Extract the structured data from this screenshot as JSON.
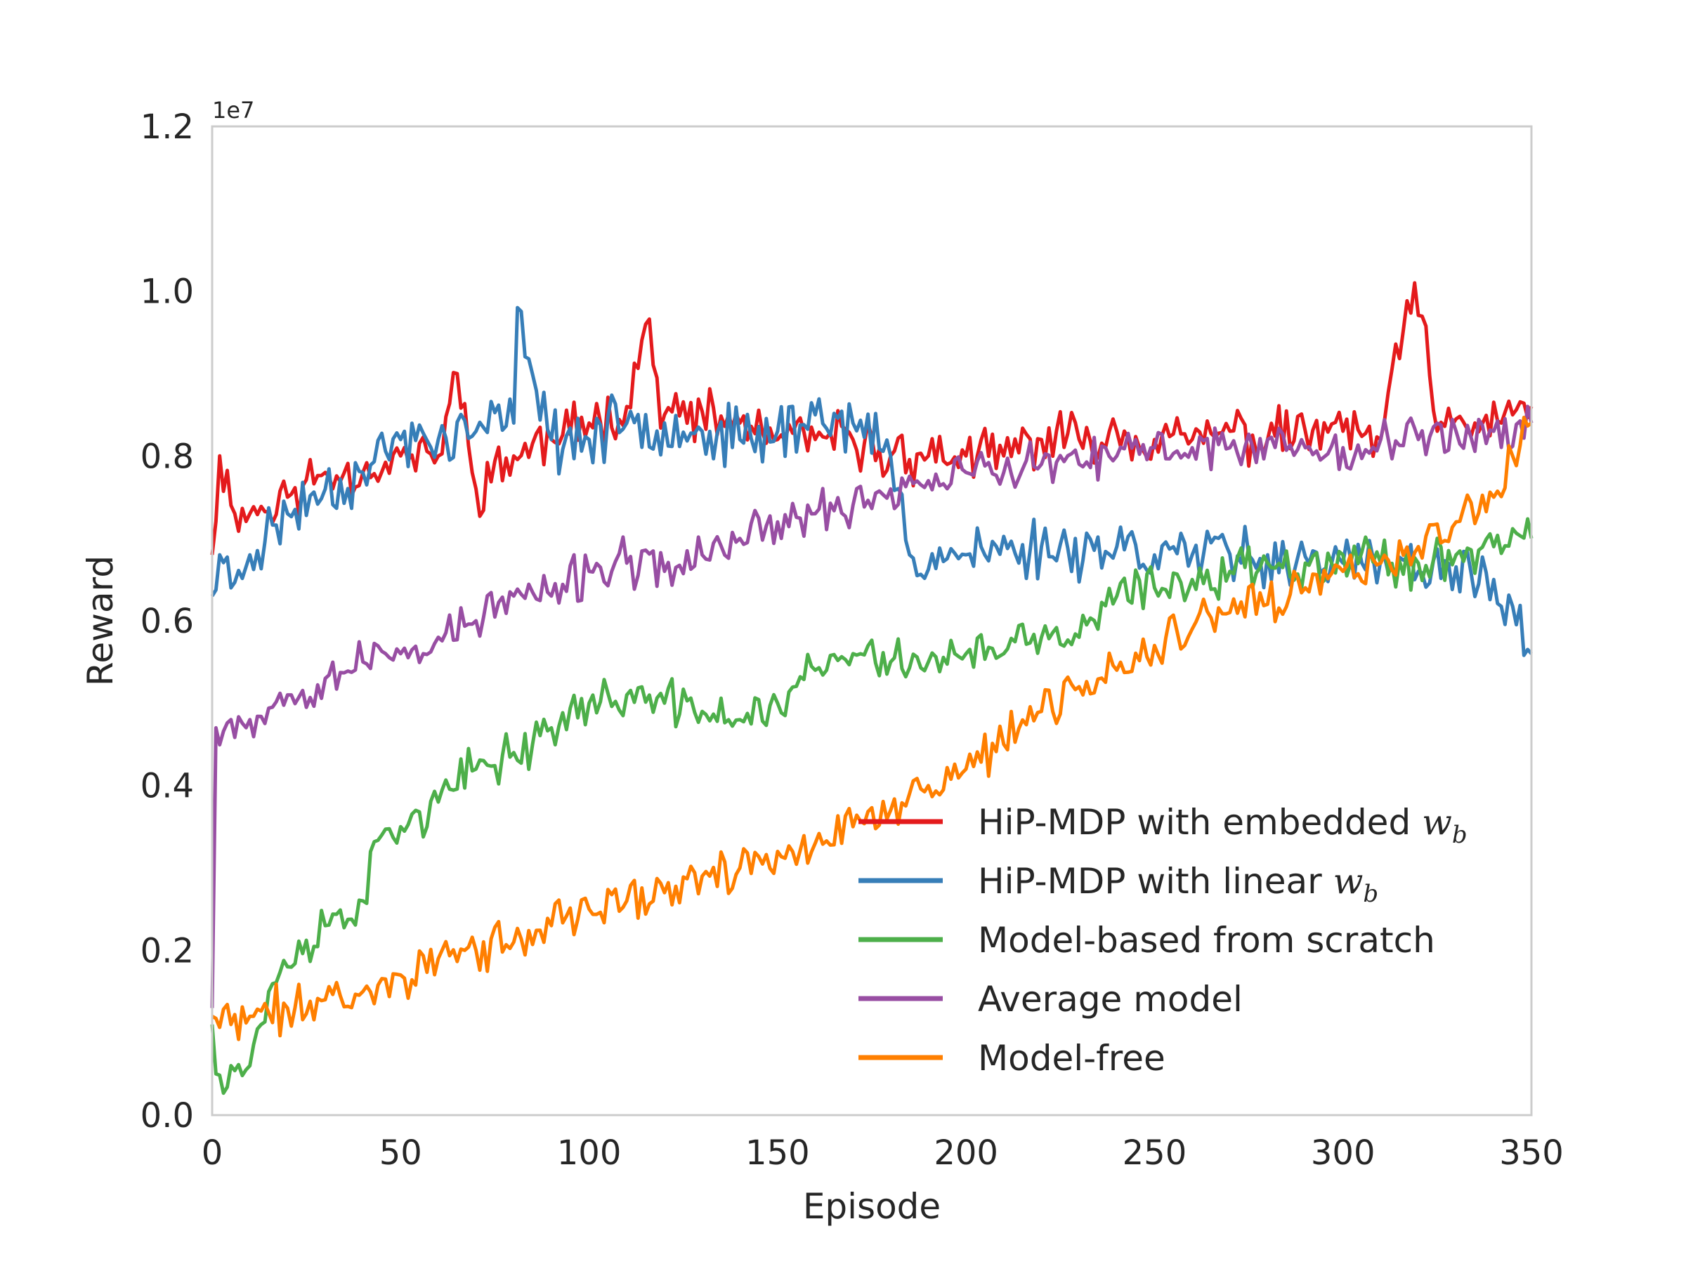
{
  "chart_data": {
    "type": "line",
    "title": "",
    "xlabel": "Episode",
    "ylabel": "Reward",
    "y_offset_label": "1e7",
    "xlim": [
      0,
      350
    ],
    "ylim": [
      0,
      1.2
    ],
    "xticks": [
      0,
      50,
      100,
      150,
      200,
      250,
      300,
      350
    ],
    "xtick_labels": [
      "0",
      "50",
      "100",
      "150",
      "200",
      "250",
      "300",
      "350"
    ],
    "yticks": [
      0,
      0.2,
      0.4,
      0.6,
      0.8,
      1.0,
      1.2
    ],
    "ytick_labels": [
      "0.0",
      "0.2",
      "0.4",
      "0.6",
      "0.8",
      "1.0",
      "1.2"
    ],
    "grid": false,
    "legend_position": "bottom-right",
    "series": [
      {
        "name": "HiP-MDP with embedded",
        "math": "w",
        "math_sub": "b",
        "color": "#e41a1c",
        "keypoints": [
          [
            0,
            0.68
          ],
          [
            2,
            0.8
          ],
          [
            5,
            0.74
          ],
          [
            10,
            0.73
          ],
          [
            20,
            0.75
          ],
          [
            30,
            0.78
          ],
          [
            40,
            0.78
          ],
          [
            50,
            0.8
          ],
          [
            60,
            0.8
          ],
          [
            65,
            0.9
          ],
          [
            70,
            0.76
          ],
          [
            80,
            0.8
          ],
          [
            90,
            0.82
          ],
          [
            100,
            0.84
          ],
          [
            110,
            0.86
          ],
          [
            115,
            0.96
          ],
          [
            120,
            0.85
          ],
          [
            140,
            0.84
          ],
          [
            150,
            0.82
          ],
          [
            160,
            0.82
          ],
          [
            170,
            0.82
          ],
          [
            180,
            0.8
          ],
          [
            190,
            0.8
          ],
          [
            200,
            0.8
          ],
          [
            210,
            0.8
          ],
          [
            220,
            0.82
          ],
          [
            230,
            0.82
          ],
          [
            240,
            0.83
          ],
          [
            250,
            0.82
          ],
          [
            260,
            0.82
          ],
          [
            270,
            0.83
          ],
          [
            280,
            0.82
          ],
          [
            290,
            0.83
          ],
          [
            300,
            0.83
          ],
          [
            310,
            0.82
          ],
          [
            319,
            1.01
          ],
          [
            325,
            0.83
          ],
          [
            335,
            0.84
          ],
          [
            345,
            0.85
          ],
          [
            350,
            0.86
          ]
        ],
        "noise": 0.04,
        "seed": 11
      },
      {
        "name": "HiP-MDP with linear",
        "math": "w",
        "math_sub": "b",
        "color": "#377eb8",
        "keypoints": [
          [
            0,
            0.63
          ],
          [
            2,
            0.68
          ],
          [
            5,
            0.64
          ],
          [
            10,
            0.68
          ],
          [
            20,
            0.73
          ],
          [
            30,
            0.76
          ],
          [
            40,
            0.78
          ],
          [
            50,
            0.82
          ],
          [
            60,
            0.82
          ],
          [
            70,
            0.83
          ],
          [
            80,
            0.84
          ],
          [
            81,
            0.98
          ],
          [
            90,
            0.82
          ],
          [
            100,
            0.82
          ],
          [
            110,
            0.84
          ],
          [
            120,
            0.84
          ],
          [
            130,
            0.83
          ],
          [
            140,
            0.82
          ],
          [
            150,
            0.83
          ],
          [
            160,
            0.85
          ],
          [
            170,
            0.84
          ],
          [
            180,
            0.8
          ],
          [
            185,
            0.68
          ],
          [
            200,
            0.68
          ],
          [
            220,
            0.69
          ],
          [
            240,
            0.69
          ],
          [
            260,
            0.68
          ],
          [
            280,
            0.68
          ],
          [
            300,
            0.67
          ],
          [
            320,
            0.66
          ],
          [
            340,
            0.65
          ],
          [
            350,
            0.56
          ]
        ],
        "noise": 0.045,
        "seed": 23
      },
      {
        "name": "Model-based from scratch",
        "color": "#4daf4a",
        "keypoints": [
          [
            0,
            0.11
          ],
          [
            1,
            0.05
          ],
          [
            5,
            0.06
          ],
          [
            10,
            0.06
          ],
          [
            15,
            0.15
          ],
          [
            20,
            0.18
          ],
          [
            30,
            0.23
          ],
          [
            40,
            0.26
          ],
          [
            45,
            0.34
          ],
          [
            50,
            0.35
          ],
          [
            60,
            0.38
          ],
          [
            70,
            0.42
          ],
          [
            80,
            0.44
          ],
          [
            90,
            0.47
          ],
          [
            100,
            0.5
          ],
          [
            110,
            0.51
          ],
          [
            120,
            0.5
          ],
          [
            130,
            0.49
          ],
          [
            140,
            0.48
          ],
          [
            150,
            0.5
          ],
          [
            160,
            0.54
          ],
          [
            170,
            0.56
          ],
          [
            180,
            0.55
          ],
          [
            190,
            0.55
          ],
          [
            200,
            0.56
          ],
          [
            210,
            0.56
          ],
          [
            220,
            0.58
          ],
          [
            230,
            0.58
          ],
          [
            240,
            0.63
          ],
          [
            250,
            0.64
          ],
          [
            260,
            0.65
          ],
          [
            270,
            0.66
          ],
          [
            280,
            0.67
          ],
          [
            290,
            0.67
          ],
          [
            300,
            0.68
          ],
          [
            310,
            0.67
          ],
          [
            320,
            0.67
          ],
          [
            330,
            0.68
          ],
          [
            340,
            0.69
          ],
          [
            350,
            0.7
          ]
        ],
        "noise": 0.035,
        "seed": 37
      },
      {
        "name": "Average model",
        "color": "#984ea3",
        "keypoints": [
          [
            0,
            0.13
          ],
          [
            1,
            0.47
          ],
          [
            5,
            0.48
          ],
          [
            10,
            0.48
          ],
          [
            20,
            0.51
          ],
          [
            30,
            0.53
          ],
          [
            40,
            0.55
          ],
          [
            50,
            0.56
          ],
          [
            60,
            0.58
          ],
          [
            70,
            0.6
          ],
          [
            80,
            0.63
          ],
          [
            90,
            0.63
          ],
          [
            100,
            0.66
          ],
          [
            110,
            0.67
          ],
          [
            120,
            0.66
          ],
          [
            130,
            0.68
          ],
          [
            140,
            0.7
          ],
          [
            150,
            0.72
          ],
          [
            160,
            0.73
          ],
          [
            170,
            0.74
          ],
          [
            180,
            0.76
          ],
          [
            190,
            0.77
          ],
          [
            200,
            0.78
          ],
          [
            210,
            0.78
          ],
          [
            220,
            0.79
          ],
          [
            230,
            0.79
          ],
          [
            240,
            0.8
          ],
          [
            250,
            0.81
          ],
          [
            260,
            0.81
          ],
          [
            270,
            0.81
          ],
          [
            280,
            0.82
          ],
          [
            290,
            0.81
          ],
          [
            300,
            0.81
          ],
          [
            310,
            0.82
          ],
          [
            320,
            0.82
          ],
          [
            330,
            0.83
          ],
          [
            340,
            0.83
          ],
          [
            350,
            0.84
          ]
        ],
        "noise": 0.035,
        "seed": 53
      },
      {
        "name": "Model-free",
        "color": "#ff7f00",
        "keypoints": [
          [
            0,
            0.12
          ],
          [
            5,
            0.11
          ],
          [
            10,
            0.12
          ],
          [
            20,
            0.13
          ],
          [
            30,
            0.14
          ],
          [
            40,
            0.15
          ],
          [
            50,
            0.17
          ],
          [
            60,
            0.19
          ],
          [
            70,
            0.2
          ],
          [
            80,
            0.21
          ],
          [
            90,
            0.23
          ],
          [
            100,
            0.25
          ],
          [
            110,
            0.26
          ],
          [
            120,
            0.27
          ],
          [
            130,
            0.29
          ],
          [
            140,
            0.3
          ],
          [
            150,
            0.32
          ],
          [
            160,
            0.33
          ],
          [
            170,
            0.35
          ],
          [
            180,
            0.37
          ],
          [
            190,
            0.4
          ],
          [
            200,
            0.42
          ],
          [
            210,
            0.45
          ],
          [
            220,
            0.49
          ],
          [
            230,
            0.52
          ],
          [
            240,
            0.54
          ],
          [
            250,
            0.57
          ],
          [
            260,
            0.59
          ],
          [
            270,
            0.61
          ],
          [
            280,
            0.62
          ],
          [
            290,
            0.64
          ],
          [
            300,
            0.66
          ],
          [
            310,
            0.67
          ],
          [
            320,
            0.69
          ],
          [
            330,
            0.72
          ],
          [
            340,
            0.75
          ],
          [
            345,
            0.8
          ],
          [
            350,
            0.84
          ]
        ],
        "noise": 0.035,
        "seed": 71
      }
    ]
  }
}
